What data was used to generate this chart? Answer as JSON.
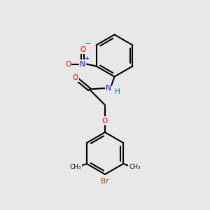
{
  "bg_color": "#e8e8e8",
  "bond_color": "#000000",
  "bond_lw": 1.5,
  "colors": {
    "O": "#ff0000",
    "N": "#0000ff",
    "Br": "#994400",
    "H": "#008080",
    "C": "#000000"
  },
  "font_size": 7.5,
  "font_size_small": 6.5
}
